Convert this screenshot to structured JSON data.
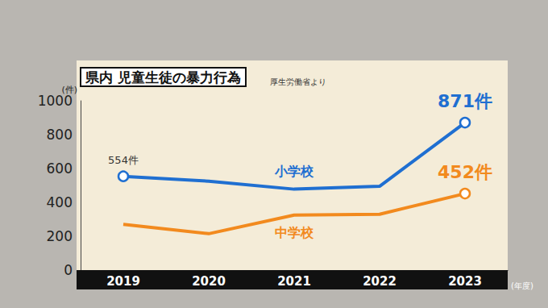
{
  "chart_data": {
    "type": "line",
    "title": "県内 児童生徒の暴力行為",
    "subtitle": "厚生労働省より",
    "x_label": "(年度)",
    "y_label": "(件)",
    "categories": [
      "2019",
      "2020",
      "2021",
      "2022",
      "2023"
    ],
    "series": [
      {
        "name": "小学校",
        "color": "#1f6fd1",
        "values": [
          554,
          525,
          478,
          495,
          871
        ],
        "value_labels": [
          "554件",
          null,
          null,
          null,
          "871件"
        ]
      },
      {
        "name": "中学校",
        "color": "#f28a1e",
        "values": [
          270,
          215,
          325,
          330,
          452
        ],
        "value_labels": [
          null,
          null,
          null,
          null,
          "452件"
        ]
      }
    ],
    "ylim": [
      0,
      1000
    ],
    "yticks": [
      0,
      200,
      400,
      600,
      800,
      1000
    ],
    "grid": false,
    "marker": "circle"
  }
}
